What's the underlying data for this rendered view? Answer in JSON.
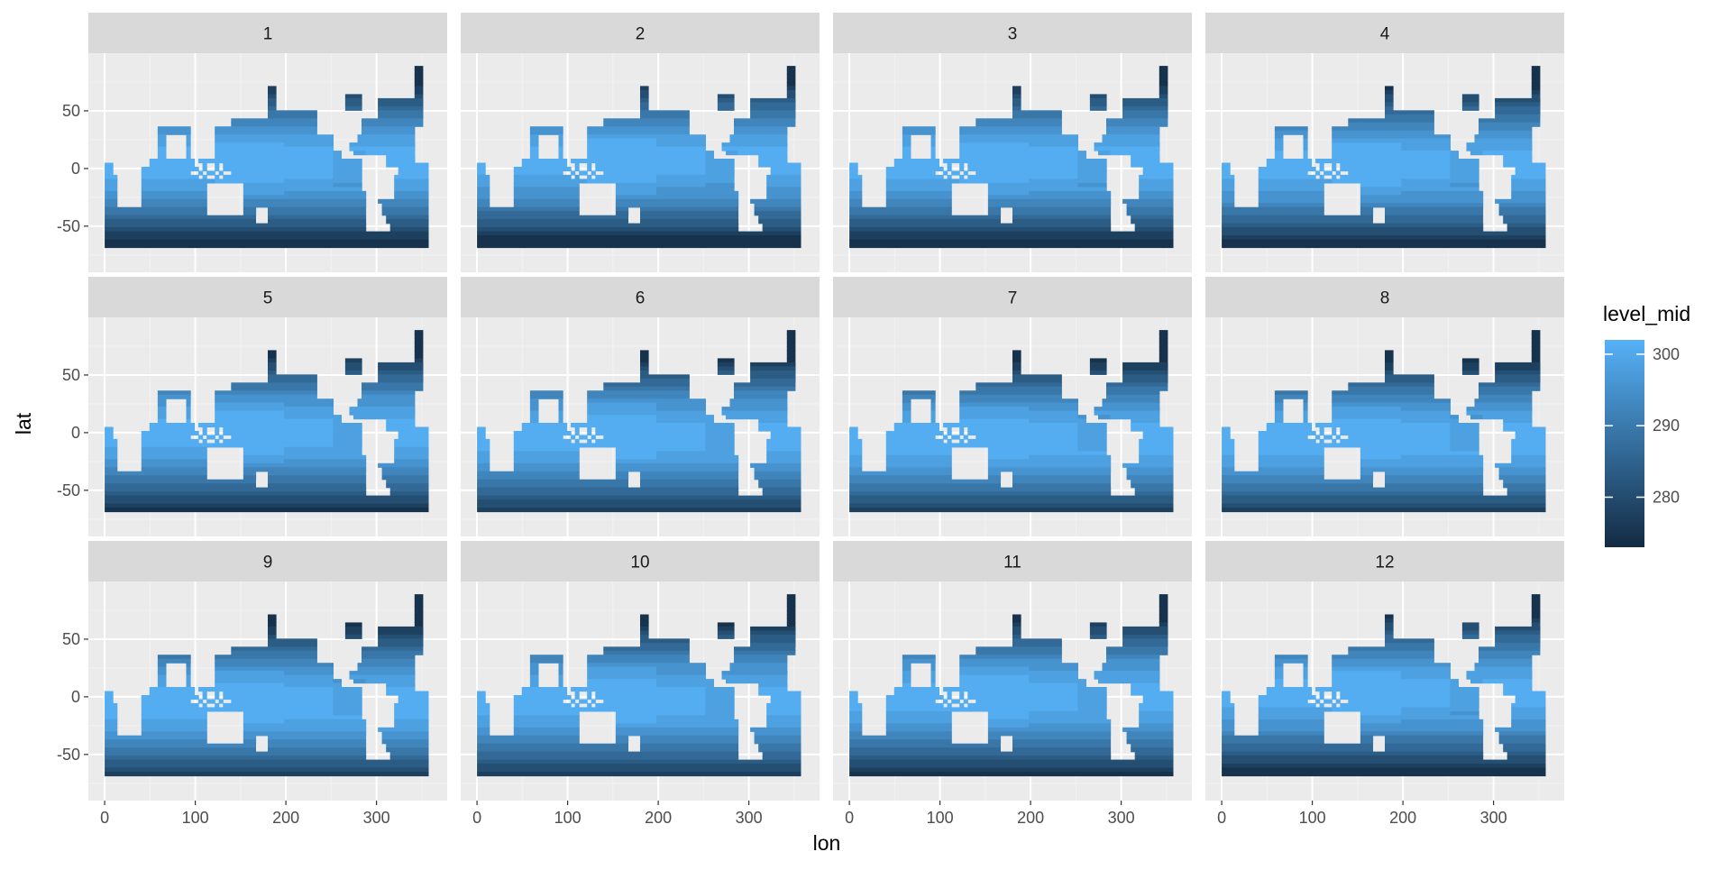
{
  "chart_data": {
    "type": "heatmap",
    "facet_variable": "month",
    "facets": [
      "1",
      "2",
      "3",
      "4",
      "5",
      "6",
      "7",
      "8",
      "9",
      "10",
      "11",
      "12"
    ],
    "facet_layout": {
      "ncol": 4,
      "nrow": 3
    },
    "xlabel": "lon",
    "ylabel": "lat",
    "xlim": [
      -18,
      378
    ],
    "ylim": [
      -90,
      100
    ],
    "xticks": [
      0,
      100,
      200,
      300
    ],
    "xtick_labels": [
      "0",
      "100",
      "200",
      "300"
    ],
    "yticks": [
      -50,
      0,
      50
    ],
    "ytick_labels": [
      "-50",
      "0",
      "50"
    ],
    "data_extent": {
      "lon": [
        0,
        357
      ],
      "lat": [
        -77,
        89
      ]
    },
    "grid": true,
    "legend": {
      "title": "level_mid",
      "placement": "right",
      "range": [
        273,
        302
      ],
      "ticks": [
        280,
        290,
        300
      ],
      "tick_labels": [
        "280",
        "290",
        "300"
      ],
      "color_low": "#132B43",
      "color_high": "#56B1F7"
    },
    "value_description": "Filled contour levels of ocean surface temperature (K), roughly 273 near the poles to 302 near the equator; land is unfilled",
    "colors": {
      "panel_background": "#EBEBEB",
      "strip_background": "#D9D9D9",
      "grid_major": "#FFFFFF",
      "grid_minor": "#F2F2F2"
    }
  }
}
